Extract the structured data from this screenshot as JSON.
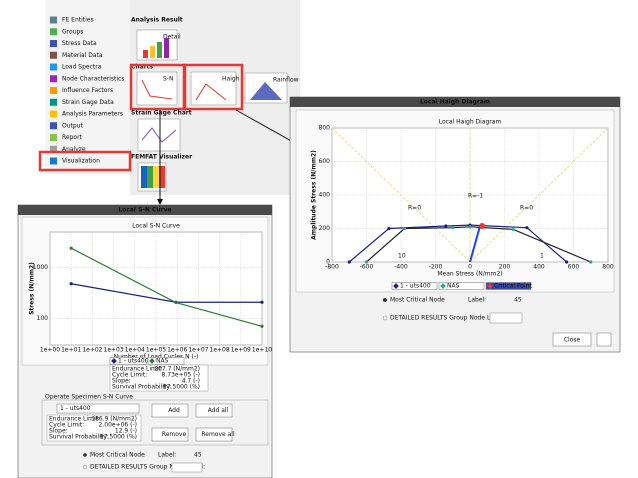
{
  "tree": {
    "items": [
      "FE Entities",
      "Groups",
      "Stress Data",
      "Material Data",
      "Load Spectra",
      "Node Characteristics",
      "Influence Factors",
      "Strain Gage Data",
      "Analysis Parameters",
      "Output",
      "Report",
      "Analyze",
      "Visualization"
    ]
  },
  "toolbar": {
    "analysis_result": "Analysis Result",
    "detail_icon": "Detail",
    "charts": "Charts",
    "sn_icon": "S-N",
    "haigh_icon": "Haigh",
    "rainflow_icon": "Rainflow",
    "strain_gage_chart": "Strain Gage Chart",
    "femfat_visualizer": "FEMFAT Visualizer"
  },
  "haigh_window": {
    "title": "Local Haigh Diagram",
    "chart": {
      "type": "line",
      "title": "Local Haigh Diagram",
      "x_label": "Mean Stress (N/mm2)",
      "y_label": "Amplitude Stress (N/mm2)",
      "xlim": [
        -800,
        800
      ],
      "ylim": [
        0,
        800
      ],
      "xticks": [
        -800,
        -600,
        -400,
        -200,
        0,
        200,
        400,
        600,
        800
      ],
      "yticks": [
        0,
        200,
        400,
        600,
        800
      ],
      "grid": true,
      "series": [
        {
          "name": "1 - uts400",
          "color": "#1a237e",
          "x": [
            -700,
            -470,
            -140,
            0,
            330,
            560
          ],
          "values": [
            0,
            200,
            215,
            220,
            205,
            0
          ]
        },
        {
          "name": "NAS",
          "color": "#26a69a",
          "x": [
            -600,
            -380,
            -100,
            0,
            250,
            700
          ],
          "values": [
            0,
            200,
            205,
            210,
            195,
            0
          ]
        },
        {
          "name": "Critical Point",
          "color": "#e53935",
          "x": [
            70
          ],
          "values": [
            215
          ]
        }
      ],
      "annotations": [
        "R=0",
        "R=-1",
        "R=0",
        "10",
        "1"
      ]
    },
    "most_critical_node": "Most Critical Node",
    "label": "Label:",
    "label_value": 45,
    "detailed": "DETAILED RESULTS Group Node Label:",
    "close": "Close"
  },
  "sn_window": {
    "title": "Local S-N Curve",
    "chart": {
      "type": "line",
      "title": "Local S-N Curve",
      "x_label": "Number of Load Cycles N (-)",
      "y_label": "Stress (N/mm2)",
      "log_x": true,
      "log_y": true,
      "xlim": [
        1,
        10000000000
      ],
      "ylim": [
        30,
        5000
      ],
      "xticks": [
        {
          "value": 1,
          "label": "1e+00"
        },
        {
          "value": 10,
          "label": "1e+01"
        },
        {
          "value": 100,
          "label": "1e+02"
        },
        {
          "value": 1000,
          "label": "1e+03"
        },
        {
          "value": 10000,
          "label": "1e+04"
        },
        {
          "value": 100000,
          "label": "1e+05"
        },
        {
          "value": 1000000,
          "label": "1e+06"
        },
        {
          "value": 10000000,
          "label": "1e+07"
        },
        {
          "value": 100000000,
          "label": "1e+08"
        },
        {
          "value": 1000000000,
          "label": "1e+09"
        },
        {
          "value": 10000000000,
          "label": "1e+10"
        }
      ],
      "yticks": [
        100,
        1000
      ],
      "grid": true,
      "series": [
        {
          "name": "1 - uts400",
          "color": "#1a237e",
          "x": [
            10,
            873000,
            10000000000
          ],
          "values": [
            480,
            207.7,
            207.7
          ]
        },
        {
          "name": "NAS",
          "color": "#2e7d32",
          "x": [
            10,
            873000,
            10000000000
          ],
          "values": [
            2400,
            205,
            70
          ]
        }
      ]
    },
    "info": [
      {
        "label": "Endurance Limit:",
        "value": "207.7 (N/mm2)"
      },
      {
        "label": "Cycle Limit:",
        "value": "8.73e+05 (-)"
      },
      {
        "label": "Slope:",
        "value": "4.7 (-)"
      },
      {
        "label": "Survival Probability:",
        "value": "97.5000 (%)"
      }
    ],
    "operate": "Operate Specimen S-N Curve",
    "selected": "1 - uts400",
    "specimen_info": [
      {
        "label": "Endurance Limit:",
        "value": "186.9 (N/mm2)"
      },
      {
        "label": "Cycle Limit:",
        "value": "2.00e+06 (-)"
      },
      {
        "label": "Slope:",
        "value": "12.9 (-)"
      },
      {
        "label": "Survival Probability:",
        "value": "97.5000 (%)"
      }
    ],
    "buttons": [
      "Add",
      "Add all",
      "Remove",
      "Remove all"
    ],
    "most_critical_node": "Most Critical Node",
    "label": "Label:",
    "label_value": 45,
    "detailed": "DETAILED RESULTS Group Node Label:"
  }
}
